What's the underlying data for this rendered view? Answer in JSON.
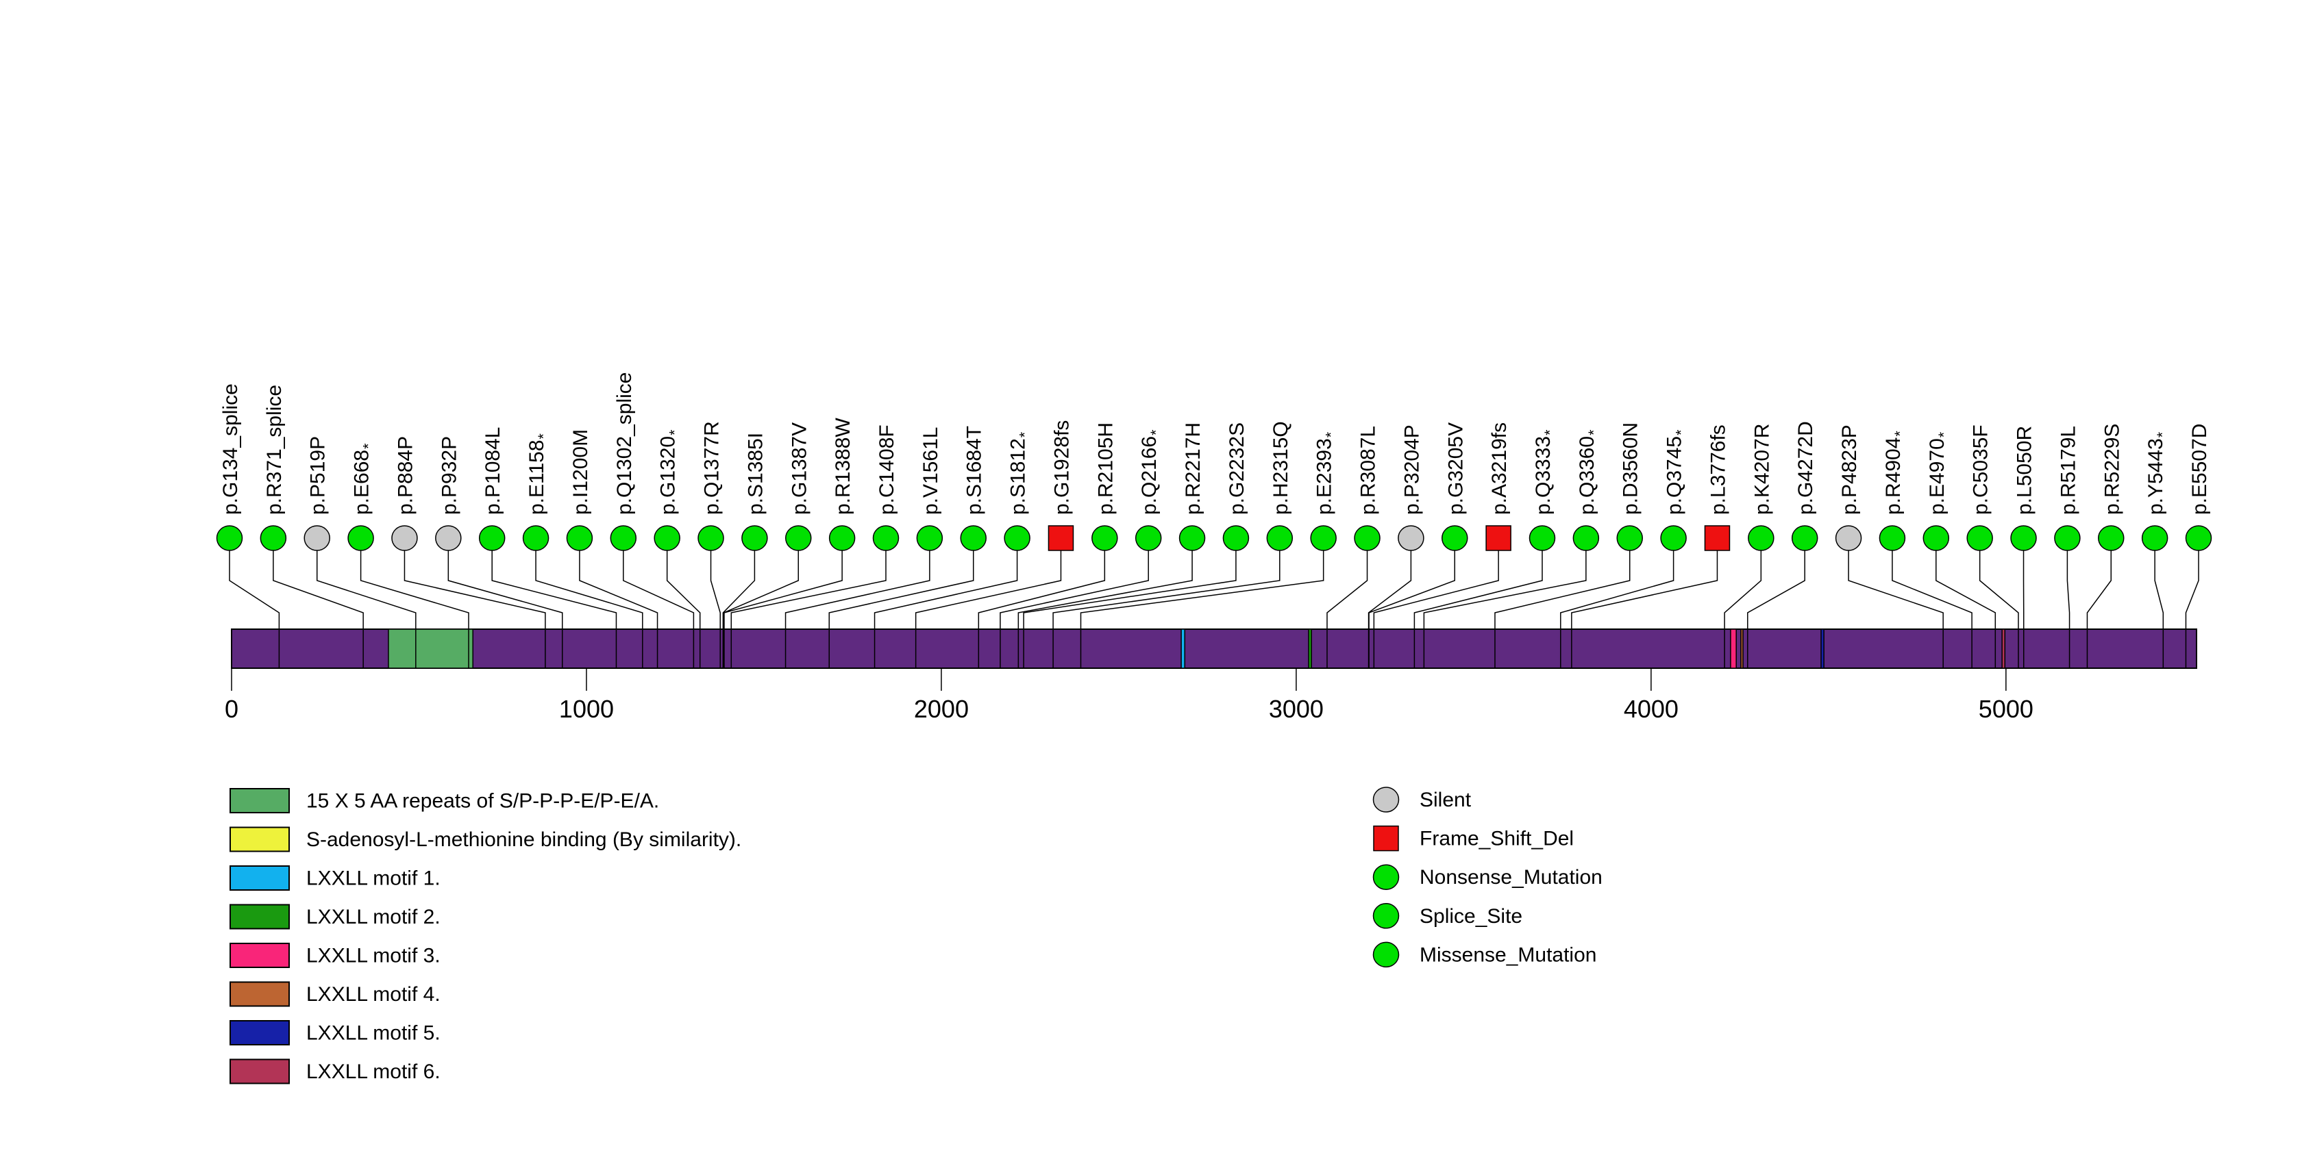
{
  "chart_data": {
    "type": "lollipop",
    "title": "",
    "protein_length": 5537,
    "axis_ticks": [
      0,
      1000,
      2000,
      3000,
      4000,
      5000
    ],
    "backbone_color": "#5F2A80",
    "marker_stroke": "#000000",
    "marker_colors": {
      "Silent": "#C9C9C9",
      "Frame_Shift_Del": "#EE1111",
      "Nonsense_Mutation": "#00E000",
      "Splice_Site": "#00E000",
      "Missense_Mutation": "#00E000"
    },
    "marker_shapes": {
      "Silent": "ellipse",
      "Frame_Shift_Del": "square",
      "Nonsense_Mutation": "ellipse",
      "Splice_Site": "ellipse",
      "Missense_Mutation": "ellipse"
    },
    "mutations": [
      {
        "label": "p.G134_splice",
        "pos": 134,
        "type": "Splice_Site"
      },
      {
        "label": "p.R371_splice",
        "pos": 371,
        "type": "Splice_Site"
      },
      {
        "label": "p.P519P",
        "pos": 519,
        "type": "Silent"
      },
      {
        "label": "p.E668*",
        "pos": 668,
        "type": "Nonsense_Mutation"
      },
      {
        "label": "p.P884P",
        "pos": 884,
        "type": "Silent"
      },
      {
        "label": "p.P932P",
        "pos": 932,
        "type": "Silent"
      },
      {
        "label": "p.P1084L",
        "pos": 1084,
        "type": "Missense_Mutation"
      },
      {
        "label": "p.E1158*",
        "pos": 1158,
        "type": "Nonsense_Mutation"
      },
      {
        "label": "p.I1200M",
        "pos": 1200,
        "type": "Missense_Mutation"
      },
      {
        "label": "p.Q1302_splice",
        "pos": 1302,
        "type": "Splice_Site"
      },
      {
        "label": "p.G1320*",
        "pos": 1320,
        "type": "Nonsense_Mutation"
      },
      {
        "label": "p.Q1377R",
        "pos": 1377,
        "type": "Missense_Mutation"
      },
      {
        "label": "p.S1385I",
        "pos": 1385,
        "type": "Missense_Mutation"
      },
      {
        "label": "p.G1387V",
        "pos": 1387,
        "type": "Missense_Mutation"
      },
      {
        "label": "p.R1388W",
        "pos": 1388,
        "type": "Missense_Mutation"
      },
      {
        "label": "p.C1408F",
        "pos": 1408,
        "type": "Missense_Mutation"
      },
      {
        "label": "p.V1561L",
        "pos": 1561,
        "type": "Missense_Mutation"
      },
      {
        "label": "p.S1684T",
        "pos": 1684,
        "type": "Missense_Mutation"
      },
      {
        "label": "p.S1812*",
        "pos": 1812,
        "type": "Nonsense_Mutation"
      },
      {
        "label": "p.G1928fs",
        "pos": 1928,
        "type": "Frame_Shift_Del"
      },
      {
        "label": "p.R2105H",
        "pos": 2105,
        "type": "Missense_Mutation"
      },
      {
        "label": "p.Q2166*",
        "pos": 2166,
        "type": "Nonsense_Mutation"
      },
      {
        "label": "p.R2217H",
        "pos": 2217,
        "type": "Missense_Mutation"
      },
      {
        "label": "p.G2232S",
        "pos": 2232,
        "type": "Missense_Mutation"
      },
      {
        "label": "p.H2315Q",
        "pos": 2315,
        "type": "Missense_Mutation"
      },
      {
        "label": "p.E2393*",
        "pos": 2393,
        "type": "Nonsense_Mutation"
      },
      {
        "label": "p.R3087L",
        "pos": 3087,
        "type": "Missense_Mutation"
      },
      {
        "label": "p.P3204P",
        "pos": 3204,
        "type": "Silent"
      },
      {
        "label": "p.G3205V",
        "pos": 3205,
        "type": "Missense_Mutation"
      },
      {
        "label": "p.A3219fs",
        "pos": 3219,
        "type": "Frame_Shift_Del"
      },
      {
        "label": "p.Q3333*",
        "pos": 3333,
        "type": "Nonsense_Mutation"
      },
      {
        "label": "p.Q3360*",
        "pos": 3360,
        "type": "Nonsense_Mutation"
      },
      {
        "label": "p.D3560N",
        "pos": 3560,
        "type": "Missense_Mutation"
      },
      {
        "label": "p.Q3745*",
        "pos": 3745,
        "type": "Nonsense_Mutation"
      },
      {
        "label": "p.L3776fs",
        "pos": 3776,
        "type": "Frame_Shift_Del"
      },
      {
        "label": "p.K4207R",
        "pos": 4207,
        "type": "Missense_Mutation"
      },
      {
        "label": "p.G4272D",
        "pos": 4272,
        "type": "Missense_Mutation"
      },
      {
        "label": "p.P4823P",
        "pos": 4823,
        "type": "Silent"
      },
      {
        "label": "p.R4904*",
        "pos": 4904,
        "type": "Nonsense_Mutation"
      },
      {
        "label": "p.E4970*",
        "pos": 4970,
        "type": "Nonsense_Mutation"
      },
      {
        "label": "p.C5035F",
        "pos": 5035,
        "type": "Missense_Mutation"
      },
      {
        "label": "p.L5050R",
        "pos": 5050,
        "type": "Missense_Mutation"
      },
      {
        "label": "p.R5179L",
        "pos": 5179,
        "type": "Missense_Mutation"
      },
      {
        "label": "p.R5229S",
        "pos": 5229,
        "type": "Missense_Mutation"
      },
      {
        "label": "p.Y5443*",
        "pos": 5443,
        "type": "Nonsense_Mutation"
      },
      {
        "label": "p.E5507D",
        "pos": 5507,
        "type": "Missense_Mutation"
      }
    ],
    "domains": [
      {
        "label": "15 X 5 AA repeats of S/P-P-P-E/P-E/A.",
        "color": "#56AC64",
        "start": 442,
        "end": 680
      },
      {
        "label": "S-adenosyl-L-methionine binding (By similarity).",
        "color": "#EEF23B",
        "start": null,
        "end": null
      },
      {
        "label": "LXXLL motif 1.",
        "color": "#12B1EE",
        "start": 2676,
        "end": 2686
      },
      {
        "label": "LXXLL motif 2.",
        "color": "#1A9A10",
        "start": 3035,
        "end": 3043
      },
      {
        "label": "LXXLL motif 3.",
        "color": "#F92579",
        "start": 4224,
        "end": 4240
      },
      {
        "label": "LXXLL motif 4.",
        "color": "#BD6532",
        "start": 4253,
        "end": 4259
      },
      {
        "label": "LXXLL motif 5.",
        "color": "#1621A8",
        "start": 4479,
        "end": 4487
      },
      {
        "label": "LXXLL motif 6.",
        "color": "#B23456",
        "start": 4989,
        "end": 4997
      }
    ],
    "type_legend": [
      {
        "label": "Silent",
        "shape": "ellipse",
        "color": "#C9C9C9"
      },
      {
        "label": "Frame_Shift_Del",
        "shape": "square",
        "color": "#EE1111"
      },
      {
        "label": "Nonsense_Mutation",
        "shape": "ellipse",
        "color": "#00E000"
      },
      {
        "label": "Splice_Site",
        "shape": "ellipse",
        "color": "#00E000"
      },
      {
        "label": "Missense_Mutation",
        "shape": "ellipse",
        "color": "#00E000"
      }
    ]
  }
}
